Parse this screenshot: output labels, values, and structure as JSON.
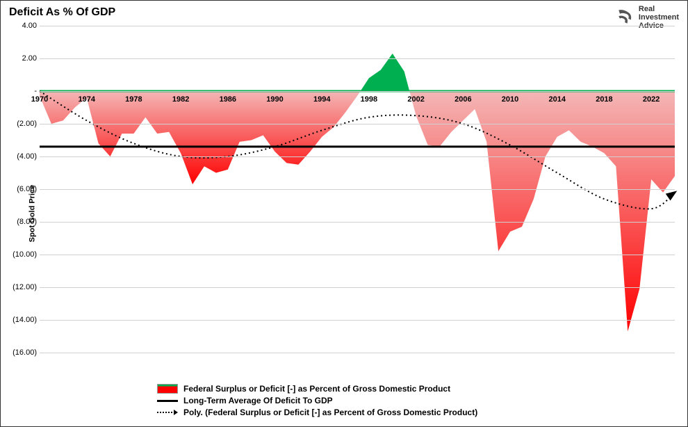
{
  "title": "Deficit As % Of GDP",
  "logo": {
    "line1": "Real",
    "line2": "Investment",
    "line3": "Advice"
  },
  "ylabel": "Spot Gold Price",
  "chart": {
    "type": "area",
    "ylim": [
      -16,
      4
    ],
    "ytick_step": 2,
    "xlim": [
      1970,
      2024
    ],
    "xtick_step": 4,
    "background_color": "#ffffff",
    "grid_color": "#d0d0d0",
    "fill_positive": "#00b050",
    "fill_negative_top": "#f4b6b6",
    "fill_negative_bottom": "#ff0000",
    "zero_line_color": "#00b050",
    "avg_line_color": "#000000",
    "avg_value": -3.4,
    "poly_color": "#000000",
    "series": {
      "years": [
        1970,
        1971,
        1972,
        1973,
        1974,
        1975,
        1976,
        1977,
        1978,
        1979,
        1980,
        1981,
        1982,
        1983,
        1984,
        1985,
        1986,
        1987,
        1988,
        1989,
        1990,
        1991,
        1992,
        1993,
        1994,
        1995,
        1996,
        1997,
        1998,
        1999,
        2000,
        2001,
        2002,
        2003,
        2004,
        2005,
        2006,
        2007,
        2008,
        2009,
        2010,
        2011,
        2012,
        2013,
        2014,
        2015,
        2016,
        2017,
        2018,
        2019,
        2020,
        2021,
        2022,
        2023,
        2024
      ],
      "values": [
        -0.3,
        -2.0,
        -1.8,
        -1.0,
        -0.4,
        -3.2,
        -4.0,
        -2.6,
        -2.6,
        -1.6,
        -2.6,
        -2.5,
        -3.8,
        -5.7,
        -4.6,
        -5.0,
        -4.8,
        -3.1,
        -3.0,
        -2.7,
        -3.7,
        -4.4,
        -4.5,
        -3.7,
        -2.8,
        -2.2,
        -1.3,
        -0.3,
        0.8,
        1.3,
        2.3,
        1.2,
        -1.5,
        -3.3,
        -3.4,
        -2.5,
        -1.8,
        -1.1,
        -3.1,
        -9.8,
        -8.6,
        -8.3,
        -6.6,
        -4.0,
        -2.8,
        -2.4,
        -3.1,
        -3.4,
        -3.8,
        -4.6,
        -14.7,
        -12.1,
        -5.4,
        -6.2,
        -5.2
      ]
    },
    "poly": {
      "years": [
        1970,
        1974,
        1978,
        1982,
        1986,
        1990,
        1994,
        1998,
        2002,
        2006,
        2010,
        2014,
        2018,
        2022,
        2024
      ],
      "values": [
        0.0,
        -1.8,
        -3.2,
        -4.0,
        -4.0,
        -3.4,
        -2.4,
        -1.6,
        -1.5,
        -2.0,
        -3.3,
        -5.0,
        -6.6,
        -7.2,
        -6.2
      ]
    }
  },
  "legend": {
    "area": "Federal Surplus or Deficit [-] as Percent of Gross Domestic Product",
    "avg": "Long-Term Average Of Deficit To GDP",
    "poly": "Poly. (Federal Surplus or Deficit [-] as Percent of Gross Domestic Product)"
  }
}
